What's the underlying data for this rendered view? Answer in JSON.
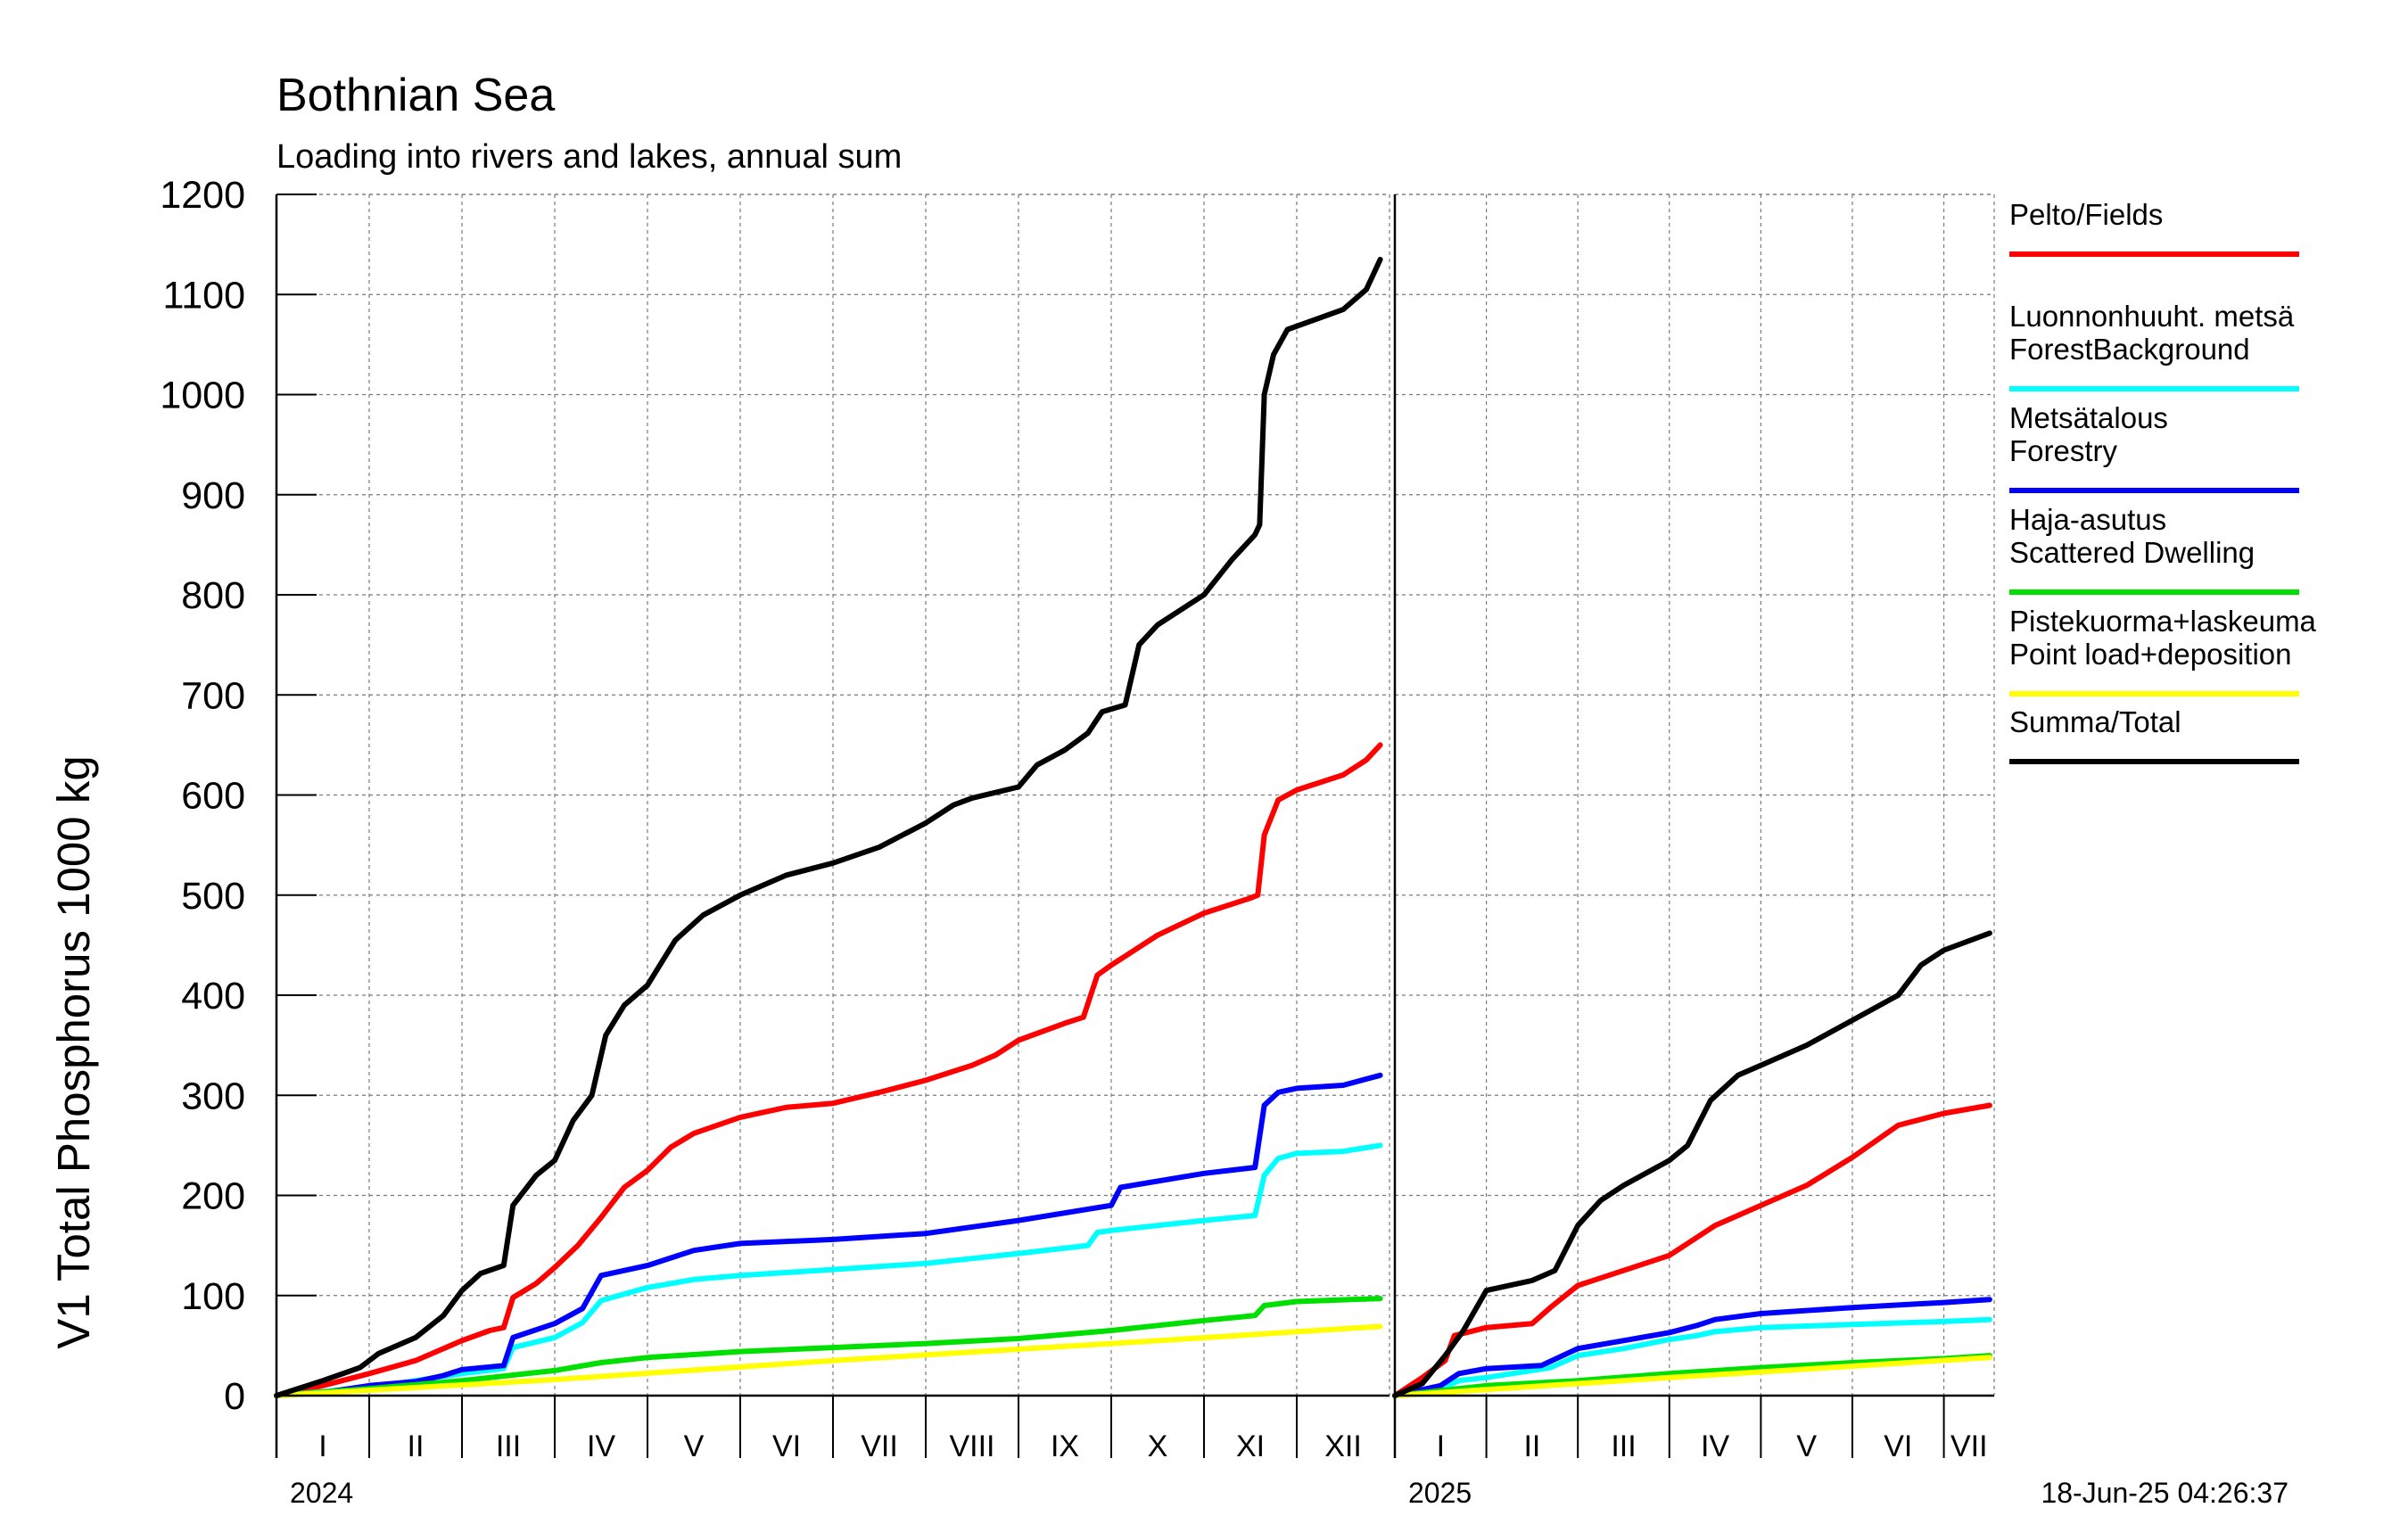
{
  "title": "Bothnian Sea",
  "subtitle": "Loading into rivers and lakes, annual sum",
  "timestamp": "18-Jun-25 04:26:37",
  "chart_data": {
    "type": "line",
    "ylabel": "V1 Total Phosphorus 1000 kg",
    "ylim": [
      0,
      1200
    ],
    "yticks": [
      0,
      100,
      200,
      300,
      400,
      500,
      600,
      700,
      800,
      900,
      1000,
      1100,
      1200
    ],
    "grid": true,
    "legend_position": "right",
    "panels": [
      {
        "year": "2024",
        "months": [
          "I",
          "II",
          "III",
          "IV",
          "V",
          "VI",
          "VII",
          "VIII",
          "IX",
          "X",
          "XI",
          "XII"
        ],
        "x_domain": [
          0,
          12
        ]
      },
      {
        "year": "2025",
        "months": [
          "I",
          "II",
          "III",
          "IV",
          "V",
          "VI",
          "VII"
        ],
        "x_domain": [
          0,
          6.55
        ]
      }
    ],
    "series": [
      {
        "name": "Pelto/Fields",
        "name2": "",
        "color": "#ff0000",
        "panels": [
          [
            [
              0,
              0
            ],
            [
              0.5,
              10
            ],
            [
              1,
              22
            ],
            [
              1.5,
              35
            ],
            [
              2,
              55
            ],
            [
              2.3,
              65
            ],
            [
              2.45,
              68
            ],
            [
              2.55,
              98
            ],
            [
              2.8,
              112
            ],
            [
              3,
              128
            ],
            [
              3.25,
              150
            ],
            [
              3.5,
              178
            ],
            [
              3.75,
              208
            ],
            [
              4,
              225
            ],
            [
              4.25,
              248
            ],
            [
              4.5,
              262
            ],
            [
              5,
              278
            ],
            [
              5.5,
              288
            ],
            [
              6,
              292
            ],
            [
              6.5,
              303
            ],
            [
              7,
              315
            ],
            [
              7.5,
              330
            ],
            [
              7.75,
              340
            ],
            [
              8,
              355
            ],
            [
              8.5,
              372
            ],
            [
              8.7,
              378
            ],
            [
              8.85,
              420
            ],
            [
              9,
              430
            ],
            [
              9.5,
              460
            ],
            [
              10,
              482
            ],
            [
              10.5,
              497
            ],
            [
              10.58,
              500
            ],
            [
              10.65,
              560
            ],
            [
              10.8,
              595
            ],
            [
              11,
              605
            ],
            [
              11.5,
              620
            ],
            [
              11.75,
              635
            ],
            [
              11.9,
              650
            ]
          ],
          [
            [
              0,
              0
            ],
            [
              0.3,
              18
            ],
            [
              0.55,
              35
            ],
            [
              0.65,
              60
            ],
            [
              1,
              68
            ],
            [
              1.5,
              72
            ],
            [
              1.7,
              88
            ],
            [
              2,
              110
            ],
            [
              2.5,
              125
            ],
            [
              3,
              140
            ],
            [
              3.5,
              170
            ],
            [
              4,
              190
            ],
            [
              4.5,
              210
            ],
            [
              5,
              238
            ],
            [
              5.5,
              270
            ],
            [
              6,
              282
            ],
            [
              6.5,
              290
            ]
          ]
        ]
      },
      {
        "name": "Luonnonhuuht. metsä",
        "name2": "ForestBackground",
        "color": "#00ffff",
        "panels": [
          [
            [
              0,
              0
            ],
            [
              1,
              8
            ],
            [
              1.5,
              15
            ],
            [
              2,
              22
            ],
            [
              2.45,
              27
            ],
            [
              2.55,
              48
            ],
            [
              3,
              58
            ],
            [
              3.3,
              73
            ],
            [
              3.5,
              95
            ],
            [
              4,
              108
            ],
            [
              4.5,
              116
            ],
            [
              5,
              120
            ],
            [
              6,
              126
            ],
            [
              7,
              132
            ],
            [
              8,
              142
            ],
            [
              8.75,
              150
            ],
            [
              8.85,
              163
            ],
            [
              9,
              165
            ],
            [
              10,
              175
            ],
            [
              10.55,
              180
            ],
            [
              10.65,
              220
            ],
            [
              10.8,
              237
            ],
            [
              11,
              242
            ],
            [
              11.5,
              244
            ],
            [
              11.9,
              250
            ]
          ],
          [
            [
              0,
              0
            ],
            [
              0.5,
              7
            ],
            [
              0.7,
              15
            ],
            [
              1,
              18
            ],
            [
              1.7,
              28
            ],
            [
              2,
              40
            ],
            [
              2.5,
              47
            ],
            [
              3,
              56
            ],
            [
              3.3,
              60
            ],
            [
              3.5,
              64
            ],
            [
              4,
              68
            ],
            [
              5,
              71
            ],
            [
              6,
              74
            ],
            [
              6.5,
              76
            ]
          ]
        ]
      },
      {
        "name": "Metsätalous",
        "name2": "Forestry",
        "color": "#0000ff",
        "panels": [
          [
            [
              0,
              0
            ],
            [
              0.5,
              3
            ],
            [
              1,
              10
            ],
            [
              1.5,
              14
            ],
            [
              1.8,
              20
            ],
            [
              2,
              26
            ],
            [
              2.45,
              30
            ],
            [
              2.55,
              58
            ],
            [
              3,
              72
            ],
            [
              3.3,
              87
            ],
            [
              3.5,
              120
            ],
            [
              4,
              130
            ],
            [
              4.5,
              145
            ],
            [
              5,
              152
            ],
            [
              6,
              156
            ],
            [
              7,
              162
            ],
            [
              8,
              175
            ],
            [
              9,
              190
            ],
            [
              9.1,
              208
            ],
            [
              10,
              222
            ],
            [
              10.55,
              228
            ],
            [
              10.65,
              290
            ],
            [
              10.8,
              303
            ],
            [
              11,
              307
            ],
            [
              11.5,
              310
            ],
            [
              11.9,
              320
            ]
          ],
          [
            [
              0,
              0
            ],
            [
              0.5,
              10
            ],
            [
              0.7,
              22
            ],
            [
              1,
              27
            ],
            [
              1.6,
              30
            ],
            [
              2,
              47
            ],
            [
              2.5,
              55
            ],
            [
              3,
              63
            ],
            [
              3.3,
              70
            ],
            [
              3.5,
              76
            ],
            [
              4,
              82
            ],
            [
              5,
              88
            ],
            [
              6,
              93
            ],
            [
              6.5,
              96
            ]
          ]
        ]
      },
      {
        "name": "Haja-asutus",
        "name2": "Scattered Dwelling",
        "color": "#00e000",
        "panels": [
          [
            [
              0,
              0
            ],
            [
              1,
              7
            ],
            [
              2,
              15
            ],
            [
              3,
              25
            ],
            [
              3.5,
              33
            ],
            [
              4,
              38
            ],
            [
              5,
              44
            ],
            [
              6,
              48
            ],
            [
              7,
              52
            ],
            [
              8,
              57
            ],
            [
              9,
              65
            ],
            [
              10,
              75
            ],
            [
              10.55,
              80
            ],
            [
              10.65,
              90
            ],
            [
              11,
              94
            ],
            [
              11.9,
              97
            ]
          ],
          [
            [
              0,
              0
            ],
            [
              1,
              10
            ],
            [
              2,
              15
            ],
            [
              3,
              22
            ],
            [
              4,
              28
            ],
            [
              5,
              33
            ],
            [
              6,
              37
            ],
            [
              6.5,
              40
            ]
          ]
        ]
      },
      {
        "name": "Pistekuorma+laskeuma",
        "name2": "Point load+deposition",
        "color": "#ffff00",
        "panels": [
          [
            [
              0,
              0
            ],
            [
              3,
              16
            ],
            [
              6,
              35
            ],
            [
              9,
              52
            ],
            [
              11.9,
              69
            ]
          ],
          [
            [
              0,
              0
            ],
            [
              3,
              18
            ],
            [
              6.5,
              38
            ]
          ]
        ]
      },
      {
        "name": "Summa/Total",
        "name2": "",
        "color": "#000000",
        "panels": [
          [
            [
              0,
              0
            ],
            [
              0.5,
              15
            ],
            [
              0.9,
              28
            ],
            [
              1.1,
              42
            ],
            [
              1.5,
              58
            ],
            [
              1.8,
              80
            ],
            [
              2,
              105
            ],
            [
              2.2,
              122
            ],
            [
              2.45,
              130
            ],
            [
              2.55,
              190
            ],
            [
              2.8,
              220
            ],
            [
              3,
              235
            ],
            [
              3.2,
              275
            ],
            [
              3.4,
              300
            ],
            [
              3.55,
              360
            ],
            [
              3.75,
              390
            ],
            [
              4,
              410
            ],
            [
              4.3,
              455
            ],
            [
              4.6,
              480
            ],
            [
              5,
              500
            ],
            [
              5.5,
              520
            ],
            [
              6,
              532
            ],
            [
              6.5,
              548
            ],
            [
              7,
              572
            ],
            [
              7.3,
              590
            ],
            [
              7.5,
              597
            ],
            [
              8,
              608
            ],
            [
              8.2,
              630
            ],
            [
              8.5,
              645
            ],
            [
              8.75,
              662
            ],
            [
              8.9,
              683
            ],
            [
              9.15,
              690
            ],
            [
              9.3,
              750
            ],
            [
              9.5,
              770
            ],
            [
              10,
              800
            ],
            [
              10.3,
              835
            ],
            [
              10.55,
              860
            ],
            [
              10.6,
              870
            ],
            [
              10.65,
              1000
            ],
            [
              10.75,
              1040
            ],
            [
              10.9,
              1065
            ],
            [
              11.2,
              1075
            ],
            [
              11.5,
              1085
            ],
            [
              11.75,
              1105
            ],
            [
              11.9,
              1135
            ]
          ],
          [
            [
              0,
              0
            ],
            [
              0.3,
              12
            ],
            [
              0.55,
              40
            ],
            [
              0.75,
              65
            ],
            [
              1,
              105
            ],
            [
              1.5,
              115
            ],
            [
              1.75,
              125
            ],
            [
              2,
              170
            ],
            [
              2.25,
              195
            ],
            [
              2.5,
              210
            ],
            [
              3,
              235
            ],
            [
              3.2,
              250
            ],
            [
              3.45,
              295
            ],
            [
              3.75,
              320
            ],
            [
              4,
              330
            ],
            [
              4.5,
              350
            ],
            [
              5,
              375
            ],
            [
              5.5,
              400
            ],
            [
              5.75,
              430
            ],
            [
              6,
              445
            ],
            [
              6.5,
              462
            ]
          ]
        ]
      }
    ]
  }
}
